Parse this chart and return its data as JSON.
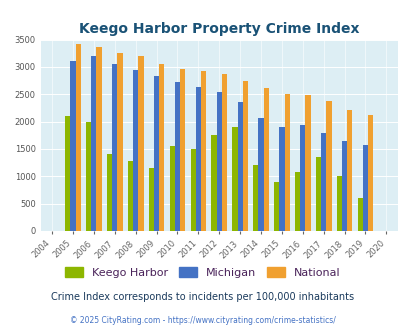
{
  "title": "Keego Harbor Property Crime Index",
  "years": [
    2004,
    2005,
    2006,
    2007,
    2008,
    2009,
    2010,
    2011,
    2012,
    2013,
    2014,
    2015,
    2016,
    2017,
    2018,
    2019,
    2020
  ],
  "keego_harbor": [
    0,
    2100,
    2000,
    1400,
    1280,
    1150,
    1550,
    1500,
    1760,
    1900,
    1200,
    900,
    1080,
    1350,
    1000,
    600,
    0
  ],
  "michigan": [
    0,
    3100,
    3200,
    3060,
    2950,
    2840,
    2730,
    2630,
    2550,
    2360,
    2060,
    1910,
    1930,
    1790,
    1650,
    1570,
    0
  ],
  "national": [
    0,
    3420,
    3360,
    3260,
    3200,
    3050,
    2960,
    2920,
    2870,
    2750,
    2620,
    2510,
    2480,
    2380,
    2220,
    2120,
    0
  ],
  "color_keego": "#8db600",
  "color_michigan": "#4472c4",
  "color_national": "#f0a030",
  "plot_bg": "#ddeef4",
  "ylim": [
    0,
    3500
  ],
  "yticks": [
    0,
    500,
    1000,
    1500,
    2000,
    2500,
    3000,
    3500
  ],
  "subtitle": "Crime Index corresponds to incidents per 100,000 inhabitants",
  "footer": "© 2025 CityRating.com - https://www.cityrating.com/crime-statistics/",
  "legend_labels": [
    "Keego Harbor",
    "Michigan",
    "National"
  ],
  "bar_width": 0.25
}
